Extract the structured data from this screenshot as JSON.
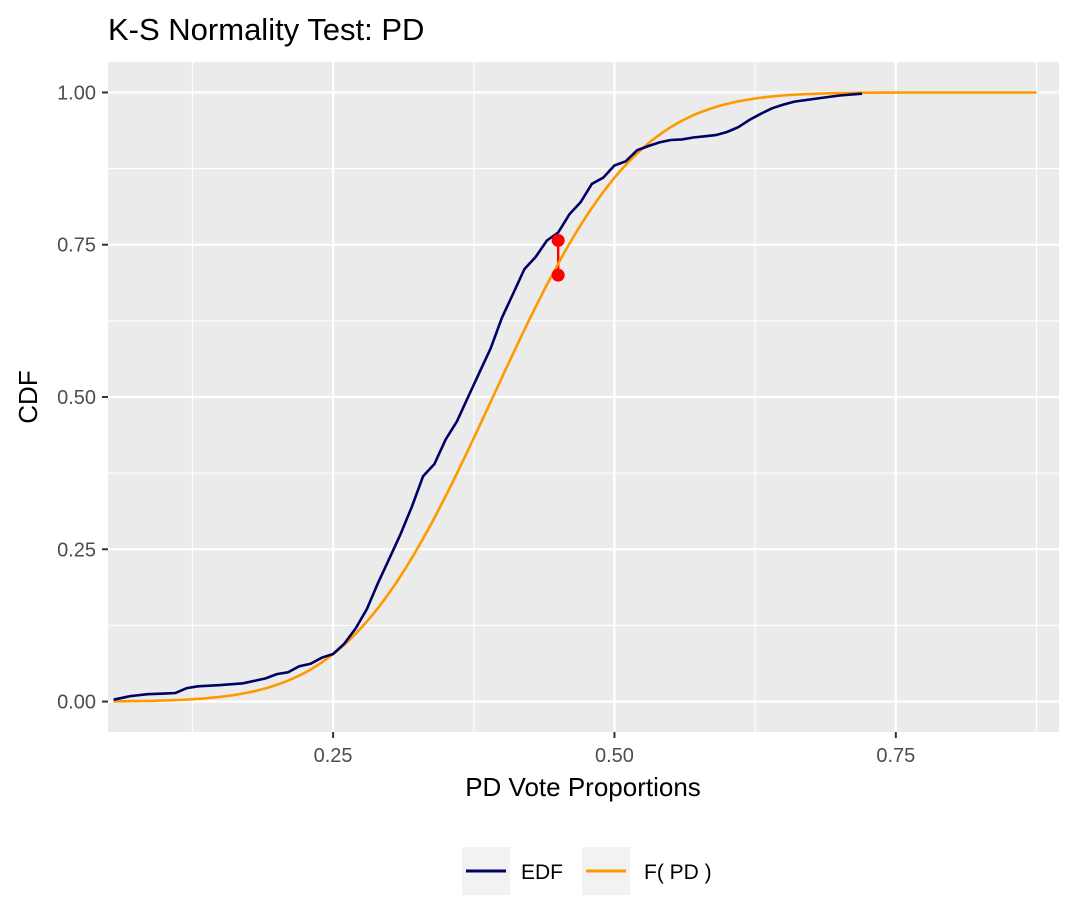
{
  "chart_data": {
    "type": "line",
    "title": "K-S Normality Test:  PD",
    "xlabel": "PD  Vote Proportions",
    "ylabel": "CDF",
    "xlim": [
      0.05,
      0.895
    ],
    "ylim": [
      -0.05,
      1.05
    ],
    "x_ticks": [
      0.25,
      0.5,
      0.75
    ],
    "x_tick_labels": [
      "0.25",
      "0.50",
      "0.75"
    ],
    "y_ticks": [
      0,
      0.25,
      0.5,
      0.75,
      1
    ],
    "y_tick_labels": [
      "0.00",
      "0.25",
      "0.50",
      "0.75",
      "1.00"
    ],
    "grid": true,
    "legend_position": "bottom",
    "series": [
      {
        "name": "EDF",
        "color": "#000066",
        "x": [
          0.055,
          0.07,
          0.085,
          0.1,
          0.11,
          0.12,
          0.13,
          0.15,
          0.17,
          0.19,
          0.2,
          0.21,
          0.22,
          0.23,
          0.24,
          0.25,
          0.26,
          0.27,
          0.28,
          0.29,
          0.3,
          0.31,
          0.32,
          0.33,
          0.34,
          0.35,
          0.36,
          0.37,
          0.38,
          0.39,
          0.4,
          0.41,
          0.42,
          0.43,
          0.44,
          0.45,
          0.46,
          0.47,
          0.48,
          0.49,
          0.5,
          0.51,
          0.52,
          0.53,
          0.54,
          0.55,
          0.56,
          0.57,
          0.58,
          0.59,
          0.6,
          0.61,
          0.62,
          0.63,
          0.64,
          0.65,
          0.66,
          0.68,
          0.7,
          0.72
        ],
        "values": [
          0.003,
          0.009,
          0.012,
          0.013,
          0.014,
          0.022,
          0.025,
          0.027,
          0.03,
          0.038,
          0.045,
          0.048,
          0.058,
          0.062,
          0.072,
          0.078,
          0.095,
          0.12,
          0.152,
          0.195,
          0.235,
          0.275,
          0.32,
          0.37,
          0.39,
          0.43,
          0.46,
          0.5,
          0.54,
          0.58,
          0.63,
          0.67,
          0.71,
          0.73,
          0.757,
          0.77,
          0.8,
          0.82,
          0.85,
          0.86,
          0.88,
          0.887,
          0.905,
          0.912,
          0.918,
          0.922,
          0.923,
          0.926,
          0.928,
          0.93,
          0.935,
          0.943,
          0.955,
          0.965,
          0.974,
          0.98,
          0.985,
          0.99,
          0.995,
          0.998
        ]
      },
      {
        "name": "F( PD )",
        "color": "#ff9900",
        "distribution": "normal",
        "mean": 0.392,
        "sd": 0.1,
        "x_range": [
          0.055,
          0.875
        ]
      }
    ],
    "ks_statistic": {
      "x": 0.45,
      "y_top": 0.757,
      "y_bottom": 0.7,
      "color": "#ff0000"
    }
  }
}
